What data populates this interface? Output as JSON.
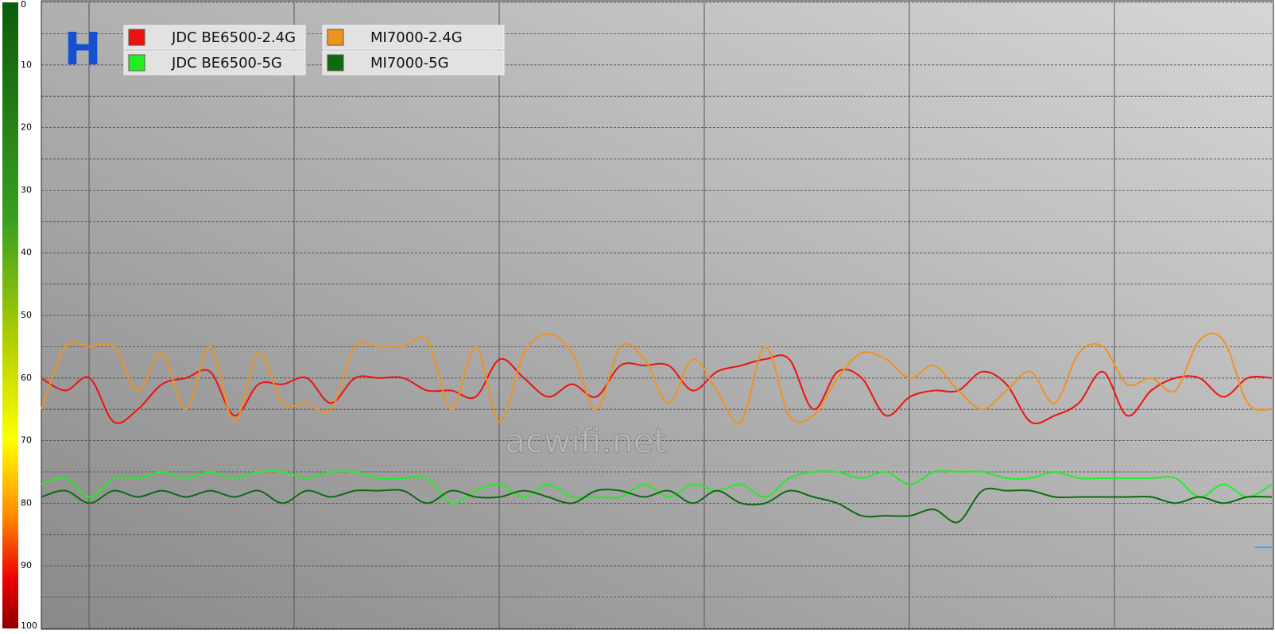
{
  "chart_data": {
    "type": "line",
    "title": "H",
    "watermark": "acwifi.net",
    "ylim": [
      0,
      100
    ],
    "yticks": [
      0,
      10,
      20,
      30,
      40,
      50,
      60,
      70,
      80,
      90,
      100
    ],
    "inverted": true,
    "grid": true,
    "series": [
      {
        "name": "JDC BE6500-2.4G",
        "color": "#ee1111",
        "values": [
          60,
          62,
          60,
          67,
          65,
          61,
          60,
          59,
          66,
          61,
          61,
          60,
          64,
          60,
          60,
          60,
          62,
          62,
          63,
          57,
          60,
          63,
          61,
          63,
          58,
          58,
          58,
          62,
          59,
          58,
          57,
          57,
          65,
          59,
          60,
          66,
          63,
          62,
          62,
          59,
          61,
          67,
          66,
          64,
          59,
          66,
          62,
          60,
          60,
          63,
          60,
          60
        ]
      },
      {
        "name": "JDC BE6500-5G",
        "color": "#22ee22",
        "values": [
          77,
          76,
          79,
          76,
          76,
          75,
          76,
          75,
          76,
          75,
          75,
          76,
          75,
          75,
          76,
          76,
          76,
          80,
          78,
          77,
          79,
          77,
          79,
          79,
          79,
          77,
          79,
          77,
          78,
          77,
          79,
          76,
          75,
          75,
          76,
          75,
          77,
          75,
          75,
          75,
          76,
          76,
          75,
          76,
          76,
          76,
          76,
          76,
          79,
          77,
          79,
          77
        ]
      },
      {
        "name": "MI7000-2.4G",
        "color": "#f0921e",
        "values": [
          65,
          55,
          55,
          55,
          62,
          56,
          65,
          55,
          67,
          56,
          64,
          64,
          65,
          55,
          55,
          55,
          54,
          65,
          55,
          67,
          56,
          53,
          56,
          65,
          55,
          57,
          64,
          57,
          62,
          67,
          55,
          66,
          66,
          60,
          56,
          57,
          60,
          58,
          62,
          65,
          62,
          59,
          64,
          56,
          55,
          61,
          60,
          62,
          54,
          54,
          64,
          65
        ]
      },
      {
        "name": "MI7000-5G",
        "color": "#0e6a0e",
        "values": [
          79,
          78,
          80,
          78,
          79,
          78,
          79,
          78,
          79,
          78,
          80,
          78,
          79,
          78,
          78,
          78,
          80,
          78,
          79,
          79,
          78,
          79,
          80,
          78,
          78,
          79,
          78,
          80,
          78,
          80,
          80,
          78,
          79,
          80,
          82,
          82,
          82,
          81,
          83,
          78,
          78,
          78,
          79,
          79,
          79,
          79,
          79,
          80,
          79,
          80,
          79,
          79
        ]
      }
    ]
  }
}
